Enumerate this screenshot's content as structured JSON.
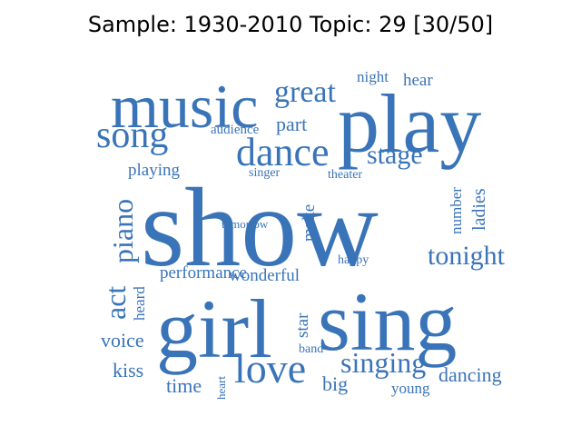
{
  "title": "Sample: 1930-2010 Topic: 29 [30/50]",
  "word_color": "#3a74b8",
  "words": [
    "show",
    "play",
    "music",
    "girl",
    "sing",
    "song",
    "great",
    "dance",
    "stage",
    "love",
    "singing",
    "tonight",
    "night",
    "hear",
    "part",
    "audience",
    "playing",
    "singer",
    "theater",
    "tomorrow",
    "performance",
    "wonderful",
    "happy",
    "voice",
    "kiss",
    "band",
    "time",
    "big",
    "young",
    "dancing",
    "piano",
    "act",
    "heard",
    "make",
    "number",
    "ladies",
    "star",
    "heart"
  ]
}
